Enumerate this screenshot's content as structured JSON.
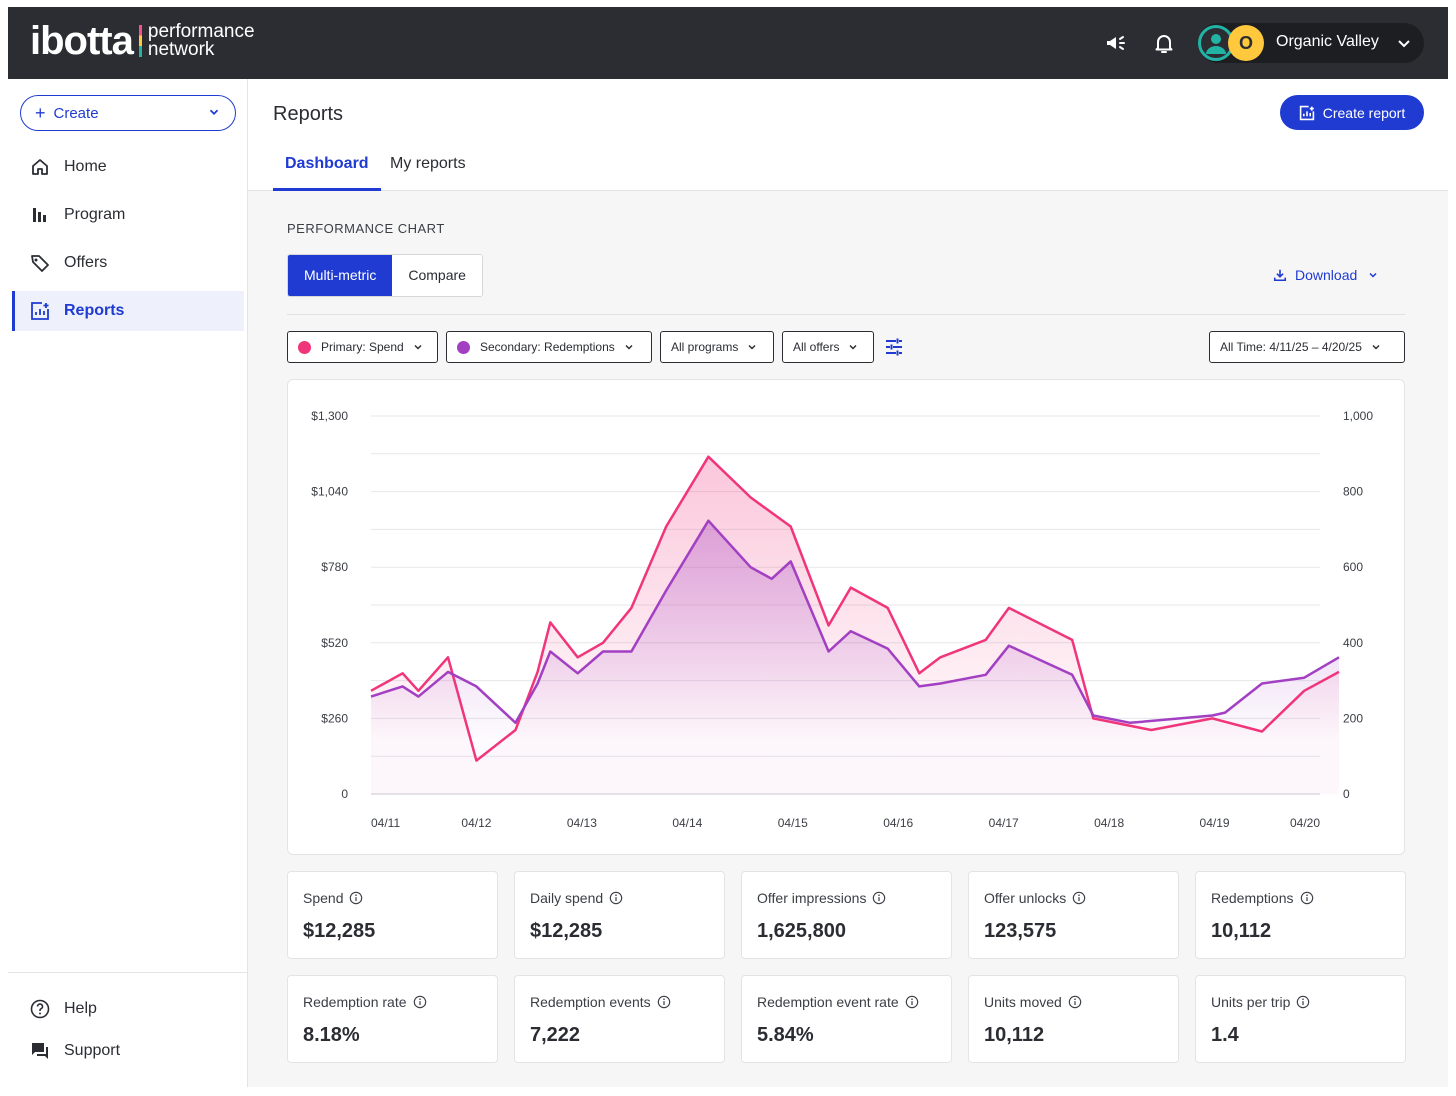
{
  "brand": {
    "logo_main": "ibotta",
    "logo_sub_line1": "performance",
    "logo_sub_line2": "network"
  },
  "account": {
    "initial": "O",
    "name": "Organic Valley"
  },
  "sidebar": {
    "create_label": "Create",
    "items": [
      {
        "label": "Home"
      },
      {
        "label": "Program"
      },
      {
        "label": "Offers"
      },
      {
        "label": "Reports"
      }
    ],
    "footer": [
      {
        "label": "Help"
      },
      {
        "label": "Support"
      }
    ]
  },
  "header": {
    "title": "Reports",
    "create_report_label": "Create report",
    "tabs": [
      {
        "label": "Dashboard"
      },
      {
        "label": "My reports"
      }
    ]
  },
  "performance": {
    "section_title": "PERFORMANCE CHART",
    "modes": [
      "Multi-metric",
      "Compare"
    ],
    "download_label": "Download",
    "filters": {
      "primary": "Primary: Spend",
      "secondary": "Secondary: Redemptions",
      "programs": "All programs",
      "offers": "All offers",
      "date_range": "All Time: 4/11/25 – 4/20/25"
    }
  },
  "colors": {
    "primary": "#f0357a",
    "secondary": "#a23fc2",
    "accent": "#1f3bd1"
  },
  "chart_data": {
    "type": "line",
    "x_ticks": [
      "04/11",
      "04/12",
      "04/13",
      "04/14",
      "04/15",
      "04/16",
      "04/17",
      "04/18",
      "04/19",
      "04/20"
    ],
    "y_left": {
      "label": "Spend",
      "ticks": [
        "$1,300",
        "$1,040",
        "$780",
        "$520",
        "$260",
        "0"
      ],
      "range": [
        0,
        1300
      ]
    },
    "y_right": {
      "label": "Redemptions",
      "ticks": [
        "1,000",
        "800",
        "600",
        "400",
        "200",
        "0"
      ],
      "range": [
        0,
        1000
      ]
    },
    "series": [
      {
        "name": "Spend",
        "axis": "left",
        "color": "#f0357a",
        "x": [
          0,
          0.3,
          0.45,
          0.73,
          1.0,
          1.37,
          1.58,
          1.7,
          1.96,
          2.2,
          2.47,
          2.8,
          3.2,
          3.6,
          3.98,
          4.34,
          4.55,
          4.9,
          5.2,
          5.4,
          5.83,
          6.05,
          6.65,
          6.85,
          6.85,
          7.4,
          7.98,
          8.45,
          8.85,
          9.18
        ],
        "values": [
          355,
          415,
          355,
          470,
          115,
          220,
          420,
          590,
          470,
          520,
          640,
          920,
          1160,
          1020,
          920,
          580,
          710,
          640,
          415,
          470,
          530,
          640,
          530,
          260,
          260,
          220,
          260,
          215,
          355,
          420
        ]
      },
      {
        "name": "Redemptions",
        "axis": "left",
        "color": "#a23fc2",
        "x": [
          0,
          0.3,
          0.45,
          0.73,
          1.0,
          1.37,
          1.58,
          1.7,
          1.96,
          2.2,
          2.47,
          2.8,
          3.2,
          3.6,
          3.8,
          3.98,
          4.34,
          4.55,
          4.9,
          5.2,
          5.4,
          5.83,
          6.05,
          6.65,
          6.85,
          7.2,
          7.98,
          8.1,
          8.45,
          8.85,
          9.18
        ],
        "values": [
          335,
          370,
          335,
          420,
          370,
          245,
          380,
          490,
          415,
          490,
          490,
          700,
          940,
          780,
          740,
          800,
          490,
          560,
          500,
          370,
          380,
          410,
          510,
          410,
          270,
          245,
          270,
          280,
          380,
          400,
          470
        ]
      }
    ]
  },
  "kpis": [
    {
      "label": "Spend",
      "value": "$12,285"
    },
    {
      "label": "Daily spend",
      "value": "$12,285"
    },
    {
      "label": "Offer impressions",
      "value": "1,625,800"
    },
    {
      "label": "Offer unlocks",
      "value": "123,575"
    },
    {
      "label": "Redemptions",
      "value": "10,112"
    },
    {
      "label": "Redemption rate",
      "value": "8.18%"
    },
    {
      "label": "Redemption events",
      "value": "7,222"
    },
    {
      "label": "Redemption event rate",
      "value": "5.84%"
    },
    {
      "label": "Units moved",
      "value": "10,112"
    },
    {
      "label": "Units per trip",
      "value": "1.4"
    }
  ]
}
